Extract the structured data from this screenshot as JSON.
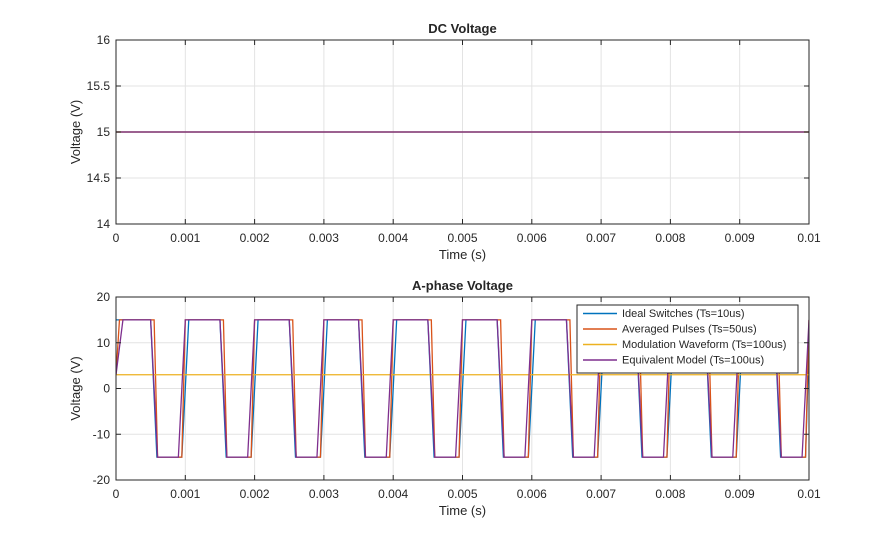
{
  "chart_data": [
    {
      "type": "line",
      "title": "DC Voltage",
      "xlabel": "Time (s)",
      "ylabel": "Voltage (V)",
      "xlim": [
        0,
        0.01
      ],
      "ylim": [
        14,
        16
      ],
      "xticks": [
        0,
        0.001,
        0.002,
        0.003,
        0.004,
        0.005,
        0.006,
        0.007,
        0.008,
        0.009,
        0.01
      ],
      "xtick_labels": [
        "0",
        "0.001",
        "0.002",
        "0.003",
        "0.004",
        "0.005",
        "0.006",
        "0.007",
        "0.008",
        "0.009",
        "0.01"
      ],
      "yticks": [
        14,
        14.5,
        15,
        15.5,
        16
      ],
      "ytick_labels": [
        "14",
        "14.5",
        "15",
        "15.5",
        "16"
      ],
      "grid": true,
      "series": [
        {
          "color": "#0072BD",
          "x": [
            0,
            0.01
          ],
          "y": [
            15,
            15
          ]
        },
        {
          "color": "#D95319",
          "x": [
            0,
            0.01
          ],
          "y": [
            15,
            15
          ]
        },
        {
          "color": "#EDB120",
          "x": [
            0,
            0.01
          ],
          "y": [
            15,
            15
          ]
        },
        {
          "color": "#7E2F8E",
          "x": [
            0,
            0.01
          ],
          "y": [
            15,
            15
          ]
        }
      ]
    },
    {
      "type": "line",
      "title": "A-phase Voltage",
      "xlabel": "Time (s)",
      "ylabel": "Voltage (V)",
      "xlim": [
        0,
        0.01
      ],
      "ylim": [
        -20,
        20
      ],
      "xticks": [
        0,
        0.001,
        0.002,
        0.003,
        0.004,
        0.005,
        0.006,
        0.007,
        0.008,
        0.009,
        0.01
      ],
      "xtick_labels": [
        "0",
        "0.001",
        "0.002",
        "0.003",
        "0.004",
        "0.005",
        "0.006",
        "0.007",
        "0.008",
        "0.009",
        "0.01"
      ],
      "yticks": [
        -20,
        -10,
        0,
        10,
        20
      ],
      "ytick_labels": [
        "-20",
        "-10",
        "0",
        "10",
        "20"
      ],
      "grid": true,
      "legend": "top-right",
      "pwm": {
        "period": 0.001,
        "high": 15,
        "low": -15
      },
      "series": [
        {
          "name": "Ideal Switches (Ts=10us)",
          "color": "#0072BD",
          "x": [
            0,
            5e-05,
            0.0005,
            0.00059,
            0.00095,
            0.00105,
            0.0015,
            0.00159,
            0.00195,
            0.00205,
            0.0025,
            0.00259,
            0.00295,
            0.00305,
            0.0035,
            0.00359,
            0.00395,
            0.00405,
            0.0045,
            0.00459,
            0.00495,
            0.00505,
            0.0055,
            0.00559,
            0.00595,
            0.00605,
            0.0065,
            0.00659,
            0.00695,
            0.00705,
            0.0075,
            0.00759,
            0.00795,
            0.00805,
            0.0085,
            0.00859,
            0.00895,
            0.00905,
            0.0095,
            0.00959,
            0.00995,
            0.01
          ],
          "y": [
            15,
            15,
            15,
            -15,
            -15,
            15,
            15,
            -15,
            -15,
            15,
            15,
            -15,
            -15,
            15,
            15,
            -15,
            -15,
            15,
            15,
            -15,
            -15,
            15,
            15,
            -15,
            -15,
            15,
            15,
            -15,
            -15,
            15,
            15,
            -15,
            -15,
            15,
            15,
            -15,
            -15,
            15,
            15,
            -15,
            -15,
            10
          ]
        },
        {
          "name": "Averaged Pulses (Ts=50us)",
          "color": "#D95319",
          "x": [
            0,
            5e-05,
            0.00055,
            0.0006,
            0.00095,
            0.001,
            0.00155,
            0.0016,
            0.00195,
            0.002,
            0.00255,
            0.0026,
            0.00295,
            0.003,
            0.00355,
            0.0036,
            0.00395,
            0.004,
            0.00455,
            0.0046,
            0.00495,
            0.005,
            0.00555,
            0.0056,
            0.00595,
            0.006,
            0.00655,
            0.0066,
            0.00695,
            0.007,
            0.00755,
            0.0076,
            0.00795,
            0.008,
            0.00855,
            0.0086,
            0.00895,
            0.009,
            0.00955,
            0.0096,
            0.00995,
            0.01
          ],
          "y": [
            3,
            15,
            15,
            -15,
            -15,
            15,
            15,
            -15,
            -15,
            15,
            15,
            -15,
            -15,
            15,
            15,
            -15,
            -15,
            15,
            15,
            -15,
            -15,
            15,
            15,
            -15,
            -15,
            15,
            15,
            -15,
            -15,
            15,
            15,
            -15,
            -15,
            15,
            15,
            -15,
            -15,
            15,
            15,
            -15,
            -15,
            15
          ]
        },
        {
          "name": "Modulation Waveform (Ts=100us)",
          "color": "#EDB120",
          "x": [
            0,
            0.01
          ],
          "y": [
            3,
            3
          ]
        },
        {
          "name": "Equivalent Model (Ts=100us)",
          "color": "#7E2F8E",
          "x": [
            0,
            0.0001,
            0.0005,
            0.0006,
            0.0009,
            0.001,
            0.0015,
            0.0016,
            0.0019,
            0.002,
            0.0025,
            0.0026,
            0.0029,
            0.003,
            0.0035,
            0.0036,
            0.0039,
            0.004,
            0.0045,
            0.0046,
            0.0049,
            0.005,
            0.0055,
            0.0056,
            0.0059,
            0.006,
            0.0065,
            0.0066,
            0.0069,
            0.007,
            0.0075,
            0.0076,
            0.0079,
            0.008,
            0.0085,
            0.0086,
            0.0089,
            0.009,
            0.0095,
            0.0096,
            0.0099,
            0.01
          ],
          "y": [
            3,
            15,
            15,
            -15,
            -15,
            15,
            15,
            -15,
            -15,
            15,
            15,
            -15,
            -15,
            15,
            15,
            -15,
            -15,
            15,
            15,
            -15,
            -15,
            15,
            15,
            -15,
            -15,
            15,
            15,
            -15,
            -15,
            15,
            15,
            -15,
            -15,
            15,
            15,
            -15,
            -15,
            15,
            15,
            -15,
            -15,
            15
          ]
        }
      ]
    }
  ]
}
